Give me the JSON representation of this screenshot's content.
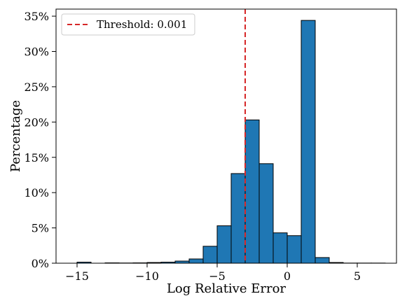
{
  "chart_data": {
    "type": "bar",
    "subtype": "histogram",
    "xlabel": "Log Relative Error",
    "ylabel": "Percentage",
    "xlim": [
      -16.5,
      7.8
    ],
    "ylim": [
      0,
      36
    ],
    "grid": false,
    "legend_position": "top-left",
    "x_ticks": [
      -15,
      -10,
      -5,
      0,
      5
    ],
    "x_tick_labels": [
      "−15",
      "−10",
      "−5",
      "0",
      "5"
    ],
    "y_ticks": [
      0,
      5,
      10,
      15,
      20,
      25,
      30,
      35
    ],
    "y_tick_labels": [
      "0%",
      "5%",
      "10%",
      "15%",
      "20%",
      "25%",
      "30%",
      "35%"
    ],
    "bar_color": "#1f77b4",
    "bar_edge_color": "#000000",
    "bins": [
      {
        "x0": -16.0,
        "x1": -15.0,
        "value": 0.0
      },
      {
        "x0": -15.0,
        "x1": -14.0,
        "value": 0.15
      },
      {
        "x0": -14.0,
        "x1": -13.0,
        "value": 0.0
      },
      {
        "x0": -13.0,
        "x1": -12.0,
        "value": 0.05
      },
      {
        "x0": -12.0,
        "x1": -11.0,
        "value": 0.03
      },
      {
        "x0": -11.0,
        "x1": -10.0,
        "value": 0.05
      },
      {
        "x0": -10.0,
        "x1": -9.0,
        "value": 0.1
      },
      {
        "x0": -9.0,
        "x1": -8.0,
        "value": 0.15
      },
      {
        "x0": -8.0,
        "x1": -7.0,
        "value": 0.3
      },
      {
        "x0": -7.0,
        "x1": -6.0,
        "value": 0.6
      },
      {
        "x0": -6.0,
        "x1": -5.0,
        "value": 2.4
      },
      {
        "x0": -5.0,
        "x1": -4.0,
        "value": 5.3
      },
      {
        "x0": -4.0,
        "x1": -3.0,
        "value": 12.7
      },
      {
        "x0": -3.0,
        "x1": -2.0,
        "value": 20.3
      },
      {
        "x0": -2.0,
        "x1": -1.0,
        "value": 14.1
      },
      {
        "x0": -1.0,
        "x1": 0.0,
        "value": 4.3
      },
      {
        "x0": 0.0,
        "x1": 1.0,
        "value": 3.9
      },
      {
        "x0": 1.0,
        "x1": 2.0,
        "value": 34.4
      },
      {
        "x0": 2.0,
        "x1": 3.0,
        "value": 0.8
      },
      {
        "x0": 3.0,
        "x1": 4.0,
        "value": 0.1
      },
      {
        "x0": 4.0,
        "x1": 5.0,
        "value": 0.02
      },
      {
        "x0": 5.0,
        "x1": 6.0,
        "value": 0.02
      },
      {
        "x0": 6.0,
        "x1": 7.0,
        "value": 0.02
      }
    ],
    "threshold": {
      "x": -3.0,
      "label": "Threshold: 0.001",
      "color": "#d62728"
    }
  }
}
